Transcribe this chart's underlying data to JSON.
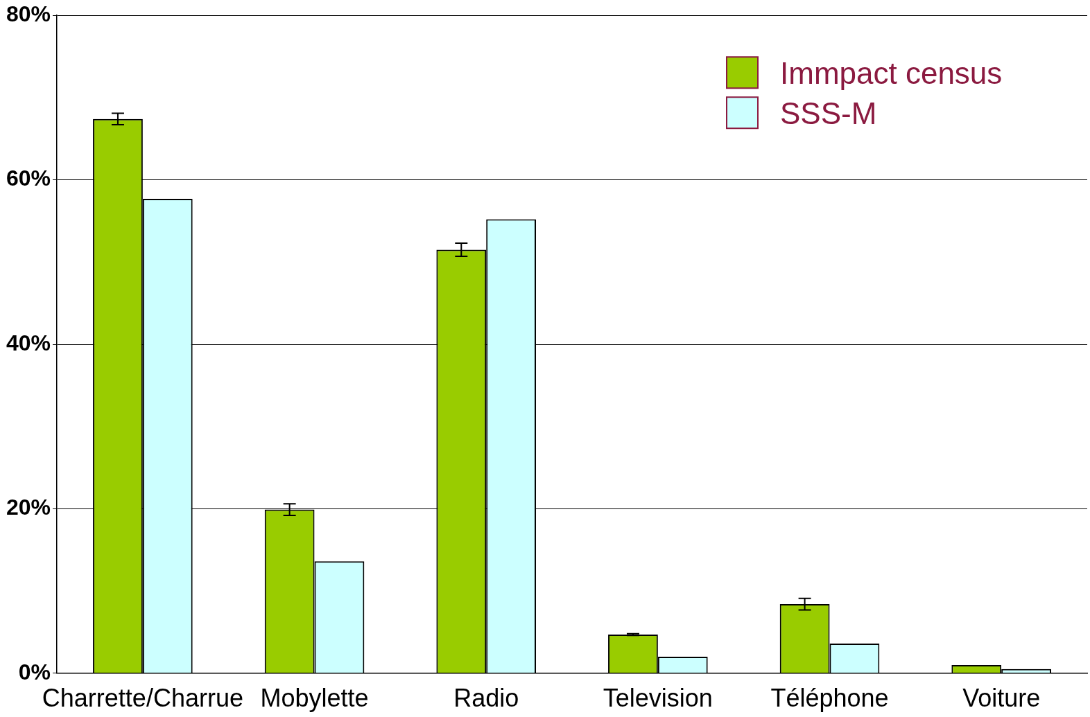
{
  "chart_data": {
    "type": "bar",
    "categories": [
      "Charrette/Charrue",
      "Mobylette",
      "Radio",
      "Television",
      "Téléphone",
      "Voiture"
    ],
    "series": [
      {
        "name": "Immpact census",
        "color": "#99cc00",
        "values": [
          67.4,
          19.9,
          51.5,
          4.7,
          8.4,
          1.0
        ],
        "errors": [
          0.7,
          0.7,
          0.8,
          0.1,
          0.7,
          null
        ]
      },
      {
        "name": "SSS-M",
        "color": "#ccffff",
        "values": [
          57.7,
          13.6,
          55.2,
          2.0,
          3.6,
          0.5
        ]
      }
    ],
    "ylim": [
      0,
      80
    ],
    "yticks": [
      {
        "value": 0,
        "label": "0%"
      },
      {
        "value": 20,
        "label": "20%"
      },
      {
        "value": 40,
        "label": "40%"
      },
      {
        "value": 60,
        "label": "60%"
      },
      {
        "value": 80,
        "label": "80%"
      }
    ],
    "grid": "y",
    "legend": "top right"
  }
}
